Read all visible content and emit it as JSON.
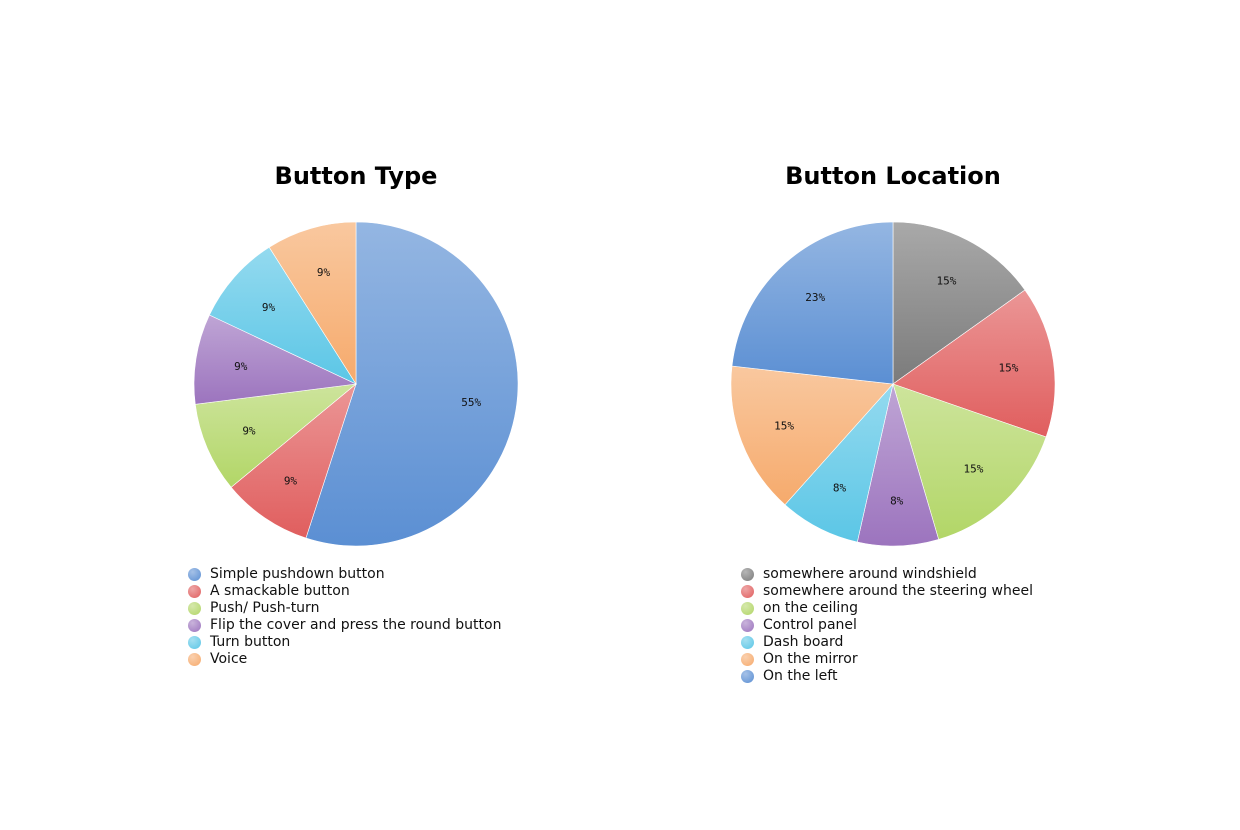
{
  "chart_data": [
    {
      "type": "pie",
      "title": "Button Type",
      "legend_position": "bottom",
      "slices": [
        {
          "label": "Simple pushdown button",
          "value": 55,
          "value_label": "55%",
          "color": "#5b8fd3"
        },
        {
          "label": "A smackable button",
          "value": 9,
          "value_label": "9%",
          "color": "#e05e5e"
        },
        {
          "label": "Push/ Push-turn",
          "value": 9,
          "value_label": "9%",
          "color": "#b2d667"
        },
        {
          "label": "Flip the cover and press the round button",
          "value": 9,
          "value_label": "9%",
          "color": "#9c74be"
        },
        {
          "label": "Turn button",
          "value": 9,
          "value_label": "9%",
          "color": "#5bc6e6"
        },
        {
          "label": "Voice",
          "value": 9,
          "value_label": "9%",
          "color": "#f6aa6c"
        }
      ]
    },
    {
      "type": "pie",
      "title": "Button Location",
      "legend_position": "bottom",
      "slices": [
        {
          "label": "somewhere around windshield",
          "value": 15,
          "value_label": "15%",
          "color": "#7b7b7b"
        },
        {
          "label": "somewhere around the steering wheel",
          "value": 15,
          "value_label": "15%",
          "color": "#e05e5e"
        },
        {
          "label": "on the ceiling",
          "value": 15,
          "value_label": "15%",
          "color": "#b2d667"
        },
        {
          "label": "Control panel",
          "value": 8,
          "value_label": "8%",
          "color": "#9c74be"
        },
        {
          "label": "Dash board",
          "value": 8,
          "value_label": "8%",
          "color": "#5bc6e6"
        },
        {
          "label": "On the mirror",
          "value": 15,
          "value_label": "15%",
          "color": "#f6aa6c"
        },
        {
          "label": "On the left",
          "value": 23,
          "value_label": "23%",
          "color": "#5b8fd3"
        }
      ]
    }
  ]
}
